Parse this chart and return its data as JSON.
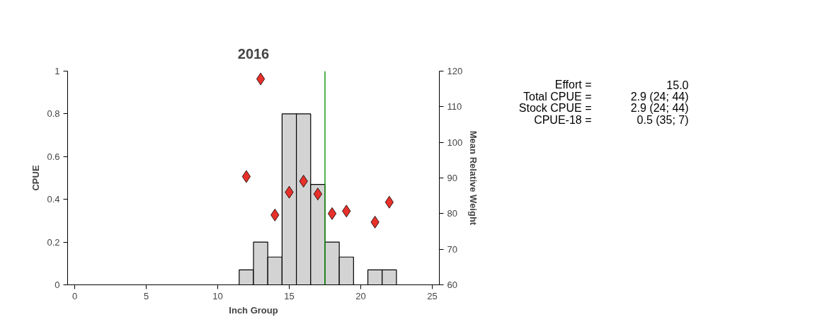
{
  "chart_data": {
    "type": "bar",
    "title": "2016",
    "xlabel": "Inch Group",
    "ylabel": "CPUE",
    "y2label": "Mean Relative Weight",
    "x": [
      12,
      13,
      14,
      15,
      16,
      17,
      18,
      19,
      20,
      21,
      22
    ],
    "series": [
      {
        "color": "#d3d3d3",
        "values": [
          0.07,
          0.2,
          0.13,
          0.8,
          0.8,
          0.47,
          0.2,
          0.13,
          0,
          0.07,
          0.07
        ]
      },
      {
        "type": "scatter",
        "axis": "y2",
        "color": "#e8302a",
        "marker": "diamond",
        "values": [
          90.4,
          117.8,
          79.6,
          86,
          89.1,
          85.5,
          80,
          80.7,
          null,
          77.6,
          83.2
        ]
      }
    ],
    "xlim": [
      -0.5,
      25.5
    ],
    "xticks": [
      0,
      5,
      10,
      15,
      20,
      25
    ],
    "ylim": [
      0,
      1
    ],
    "yticks": [
      0,
      0.2,
      0.4,
      0.6,
      0.8,
      1
    ],
    "y2lim": [
      60,
      120
    ],
    "y2ticks": [
      60,
      70,
      80,
      90,
      100,
      110,
      120
    ],
    "ref_lines": [
      {
        "axis": "x",
        "value": 17.5,
        "label": null,
        "color": "#1a9a1a"
      }
    ],
    "annotations": [
      "Effort =",
      "15.0",
      "Total CPUE =",
      "2.9 (24; 44)",
      "Stock CPUE =",
      "2.9 (24; 44)",
      "CPUE-18 =",
      "0.5 (35; 7)"
    ],
    "grid": false
  }
}
